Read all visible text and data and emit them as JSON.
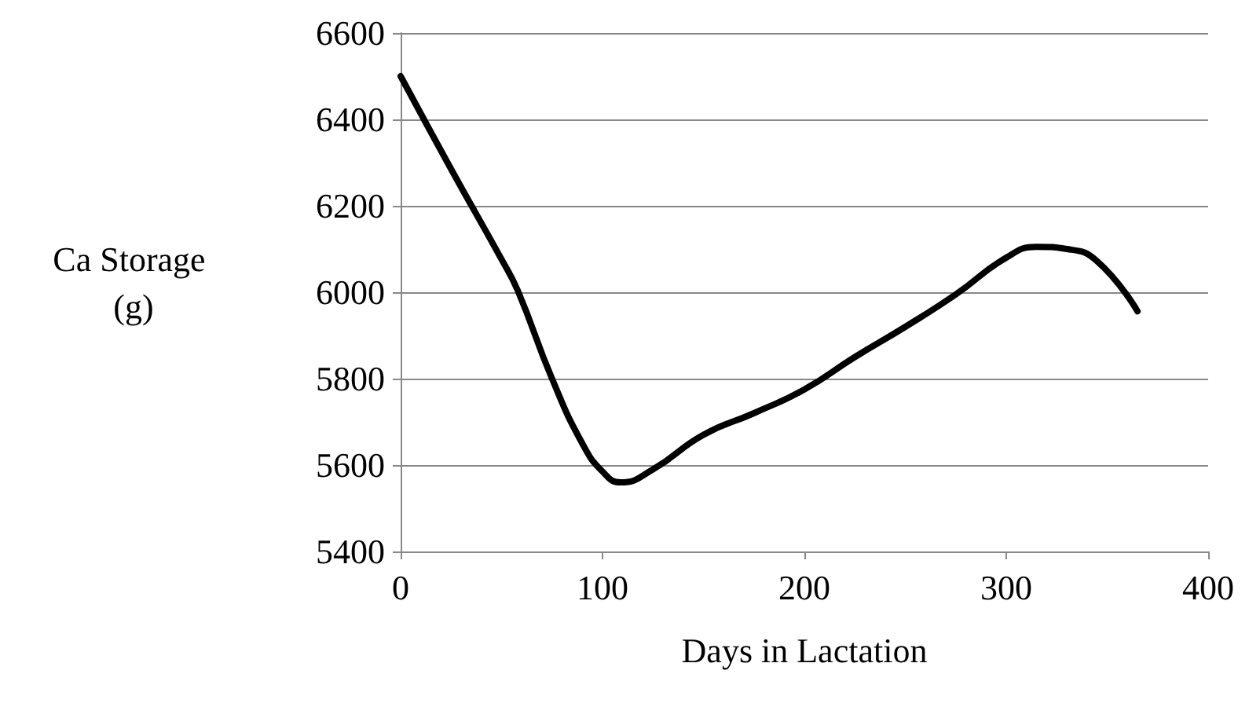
{
  "chart_data": {
    "type": "line",
    "xlabel": "Days in Lactation",
    "ylabel": "Ca Storage (g)",
    "x": [
      0,
      25,
      50,
      58,
      75,
      90,
      100,
      109,
      125,
      150,
      175,
      200,
      225,
      250,
      275,
      300,
      315,
      330,
      345,
      365
    ],
    "series": [
      {
        "color": "#000000",
        "values": [
          6500,
          6285,
          6076,
          6004,
          5800,
          5650,
          5585,
          5560,
          5590,
          5670,
          5720,
          5775,
          5850,
          5920,
          5995,
          6080,
          6105,
          6100,
          6072,
          5956
        ]
      }
    ],
    "xlim": [
      0,
      400
    ],
    "xticks": [
      0,
      100,
      200,
      300,
      400
    ],
    "ylim": [
      5400,
      6600
    ],
    "yticks": [
      5400,
      5600,
      5800,
      6000,
      6200,
      6400,
      6600
    ],
    "grid": "y",
    "marker": "none",
    "line_style": "solid"
  }
}
